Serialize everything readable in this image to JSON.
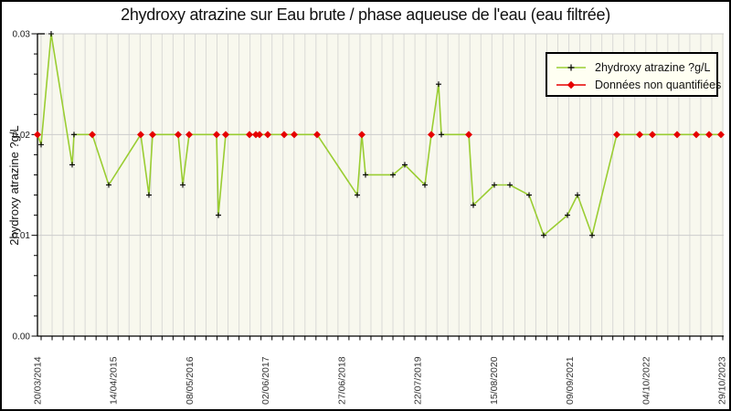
{
  "title": "2hydroxy atrazine sur Eau brute / phase aqueuse de l'eau (eau filtrée)",
  "colors": {
    "series_green": "#9ACD32",
    "nq_red": "#E60000",
    "plot_bg": "#f8f8ee",
    "grid_vertical": "#d9d9d6",
    "grid_horizontal": "#cccccc",
    "axis": "#000000",
    "text": "#1a1a1a"
  },
  "legend": {
    "items": [
      {
        "label": "2hydroxy atrazine ?g/L",
        "marker": "green-line-plus"
      },
      {
        "label": "Données non quantifiées",
        "marker": "red-line-diamond"
      }
    ]
  },
  "chart_data": {
    "type": "line",
    "title": "2hydroxy atrazine sur Eau brute / phase aqueuse de l'eau (eau filtrée)",
    "xlabel": "",
    "ylabel": "2hydroxy atrazine ?g/L",
    "ylim": [
      0,
      0.03
    ],
    "yticks": [
      0,
      0.01,
      0.02,
      0.03
    ],
    "ytick_labels": [
      "0.00",
      "0.01",
      "0.02",
      "0.03"
    ],
    "y_minor_step": 0.002,
    "xtick_labels": [
      "20/03/2014",
      "14/04/2015",
      "08/05/2016",
      "02/06/2017",
      "27/06/2018",
      "22/07/2019",
      "15/08/2020",
      "09/09/2021",
      "04/10/2022",
      "29/10/2023"
    ],
    "grid_vertical_count": 63,
    "legend_position": "upper right",
    "quantification_limit": 0.02,
    "point_format": "[x_px, value_ug_per_L, quantified(1) / non_quantified(0)]",
    "points": [
      [
        41,
        0.02,
        0
      ],
      [
        45,
        0.019,
        1
      ],
      [
        56,
        0.03,
        1
      ],
      [
        79,
        0.017,
        1
      ],
      [
        81,
        0.02,
        1
      ],
      [
        101,
        0.02,
        0
      ],
      [
        119,
        0.015,
        1
      ],
      [
        154,
        0.02,
        0
      ],
      [
        163,
        0.014,
        1
      ],
      [
        167,
        0.02,
        0
      ],
      [
        195,
        0.02,
        0
      ],
      [
        200,
        0.015,
        1
      ],
      [
        207,
        0.02,
        0
      ],
      [
        237,
        0.02,
        0
      ],
      [
        239,
        0.012,
        1
      ],
      [
        247,
        0.02,
        0
      ],
      [
        273,
        0.02,
        0
      ],
      [
        280,
        0.02,
        0
      ],
      [
        284,
        0.02,
        0
      ],
      [
        293,
        0.02,
        0
      ],
      [
        311,
        0.02,
        0
      ],
      [
        322,
        0.02,
        0
      ],
      [
        347,
        0.02,
        0
      ],
      [
        391,
        0.014,
        1
      ],
      [
        396,
        0.02,
        0
      ],
      [
        400,
        0.016,
        1
      ],
      [
        430,
        0.016,
        1
      ],
      [
        443,
        0.017,
        1
      ],
      [
        465,
        0.015,
        1
      ],
      [
        472,
        0.02,
        0
      ],
      [
        480,
        0.025,
        1
      ],
      [
        483,
        0.02,
        1
      ],
      [
        513,
        0.02,
        0
      ],
      [
        518,
        0.013,
        1
      ],
      [
        541,
        0.015,
        1
      ],
      [
        558,
        0.015,
        1
      ],
      [
        579,
        0.014,
        1
      ],
      [
        595,
        0.01,
        1
      ],
      [
        621,
        0.012,
        1
      ],
      [
        632,
        0.014,
        1
      ],
      [
        648,
        0.01,
        1
      ],
      [
        675,
        0.02,
        0
      ],
      [
        700,
        0.02,
        0
      ],
      [
        714,
        0.02,
        0
      ],
      [
        741,
        0.02,
        0
      ],
      [
        762,
        0.02,
        0
      ],
      [
        776,
        0.02,
        0
      ],
      [
        789,
        0.02,
        0
      ]
    ]
  }
}
